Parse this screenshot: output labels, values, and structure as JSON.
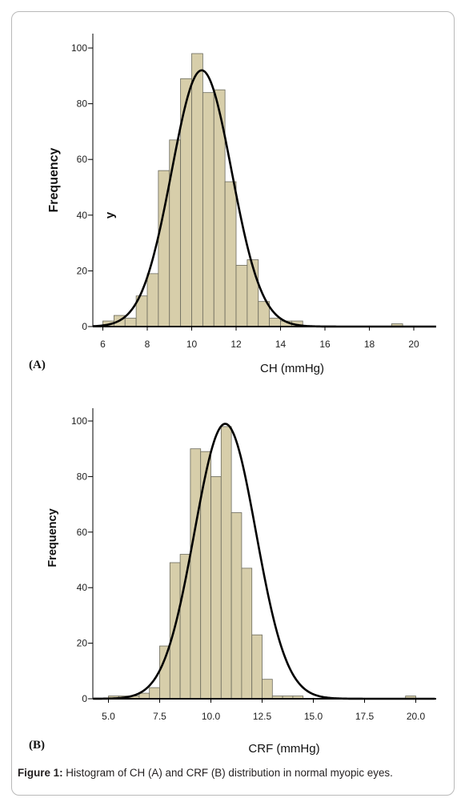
{
  "chart_data": [
    {
      "type": "bar",
      "panel_label": "(A)",
      "xlabel": "CH (mmHg)",
      "ylabel": "Frequency",
      "stray_label": "y",
      "xlim": [
        5.5,
        21.0
      ],
      "ylim": [
        0,
        105
      ],
      "xticks": [
        6,
        8,
        10,
        12,
        14,
        16,
        18,
        20
      ],
      "xtick_labels": [
        "6",
        "8",
        "10",
        "12",
        "14",
        "16",
        "18",
        "20"
      ],
      "yticks": [
        0,
        20,
        40,
        60,
        80,
        100
      ],
      "ytick_labels": [
        "0",
        "20",
        "40",
        "60",
        "80",
        "100"
      ],
      "bin_width": 0.5,
      "bins": [
        {
          "x": 6.25,
          "value": 2
        },
        {
          "x": 6.75,
          "value": 4
        },
        {
          "x": 7.25,
          "value": 3
        },
        {
          "x": 7.75,
          "value": 11
        },
        {
          "x": 8.25,
          "value": 19
        },
        {
          "x": 8.75,
          "value": 56
        },
        {
          "x": 9.25,
          "value": 67
        },
        {
          "x": 9.75,
          "value": 89
        },
        {
          "x": 10.25,
          "value": 98
        },
        {
          "x": 10.75,
          "value": 84
        },
        {
          "x": 11.25,
          "value": 85
        },
        {
          "x": 11.75,
          "value": 52
        },
        {
          "x": 12.25,
          "value": 22
        },
        {
          "x": 12.75,
          "value": 24
        },
        {
          "x": 13.25,
          "value": 9
        },
        {
          "x": 13.75,
          "value": 3
        },
        {
          "x": 14.25,
          "value": 2
        },
        {
          "x": 14.75,
          "value": 2
        },
        {
          "x": 19.25,
          "value": 1
        }
      ],
      "normal_curve": {
        "mean": 10.45,
        "sd": 1.35,
        "peak": 92
      },
      "grid": false
    },
    {
      "type": "bar",
      "panel_label": "(B)",
      "xlabel": "CRF (mmHg)",
      "ylabel": "Frequency",
      "xlim": [
        4.2,
        21.0
      ],
      "ylim": [
        0,
        105
      ],
      "xticks": [
        5.0,
        7.5,
        10.0,
        12.5,
        15.0,
        17.5,
        20.0
      ],
      "xtick_labels": [
        "5.0",
        "7.5",
        "10.0",
        "12.5",
        "15.0",
        "17.5",
        "20.0"
      ],
      "yticks": [
        0,
        20,
        40,
        60,
        80,
        100
      ],
      "ytick_labels": [
        "0",
        "20",
        "40",
        "60",
        "80",
        "100"
      ],
      "bin_width": 0.5,
      "bins": [
        {
          "x": 5.25,
          "value": 1
        },
        {
          "x": 5.75,
          "value": 1
        },
        {
          "x": 6.25,
          "value": 1
        },
        {
          "x": 6.75,
          "value": 2
        },
        {
          "x": 7.25,
          "value": 4
        },
        {
          "x": 7.75,
          "value": 19
        },
        {
          "x": 8.25,
          "value": 49
        },
        {
          "x": 8.75,
          "value": 52
        },
        {
          "x": 9.25,
          "value": 90
        },
        {
          "x": 9.75,
          "value": 89
        },
        {
          "x": 10.25,
          "value": 80
        },
        {
          "x": 10.75,
          "value": 98
        },
        {
          "x": 11.25,
          "value": 67
        },
        {
          "x": 11.75,
          "value": 47
        },
        {
          "x": 12.25,
          "value": 23
        },
        {
          "x": 12.75,
          "value": 7
        },
        {
          "x": 13.25,
          "value": 1
        },
        {
          "x": 13.75,
          "value": 1
        },
        {
          "x": 14.25,
          "value": 1
        },
        {
          "x": 19.75,
          "value": 1
        }
      ],
      "normal_curve": {
        "mean": 10.7,
        "sd": 1.5,
        "peak": 99
      },
      "grid": false
    }
  ],
  "caption": {
    "label": "Figure 1:",
    "text": " Histogram of CH (A) and CRF (B) distribution in normal myopic eyes."
  },
  "colors": {
    "bar_fill": "#d7ceaa",
    "bar_stroke": "#6b6a5c",
    "curve": "#000000",
    "axis": "#000000"
  }
}
